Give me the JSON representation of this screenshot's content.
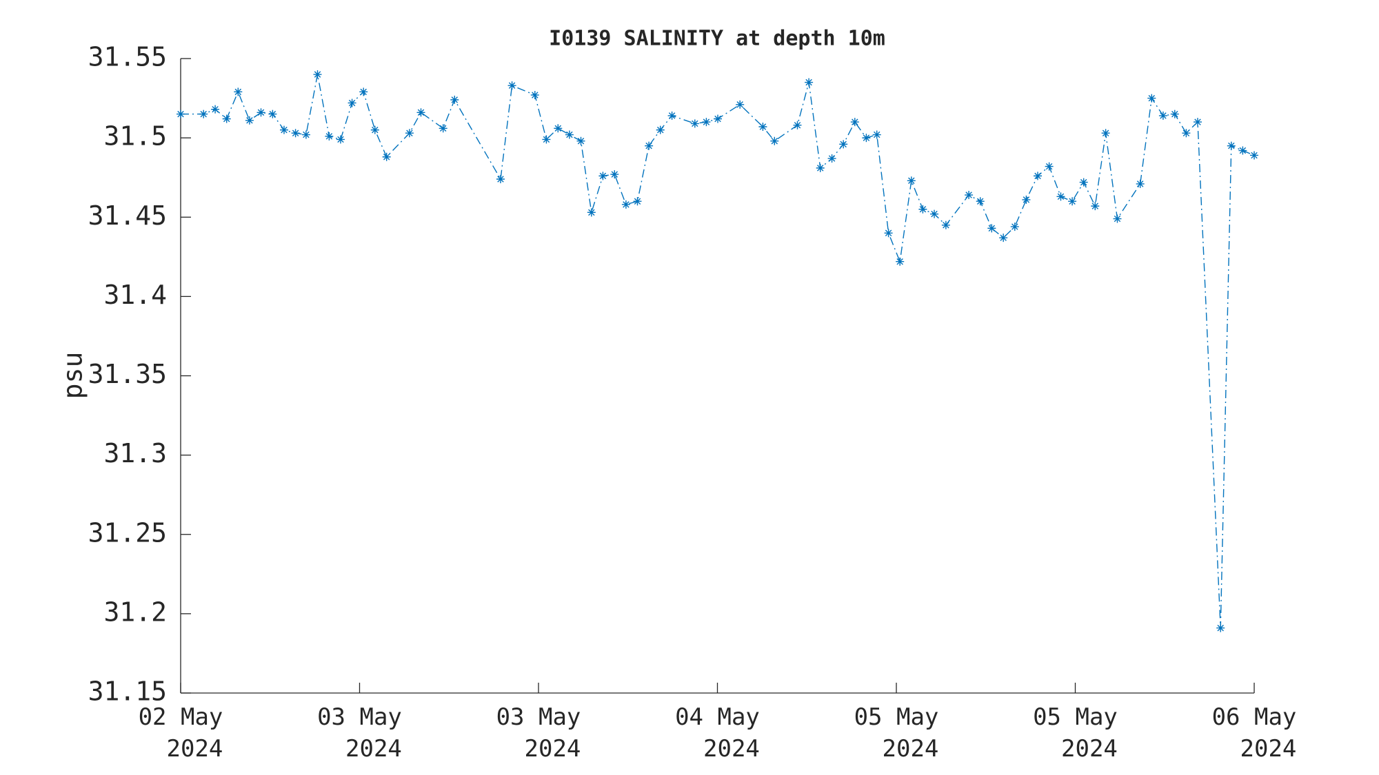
{
  "chart_data": {
    "type": "line",
    "title": "I0139 SALINITY at depth 10m",
    "y_label": "psu",
    "xlim": [
      0,
      6
    ],
    "xticks": [
      {
        "value": 0,
        "label": "02 May\n2024"
      },
      {
        "value": 1,
        "label": "03 May\n2024"
      },
      {
        "value": 2,
        "label": "03 May\n2024"
      },
      {
        "value": 3,
        "label": "04 May\n2024"
      },
      {
        "value": 4,
        "label": "05 May\n2024"
      },
      {
        "value": 5,
        "label": "05 May\n2024"
      },
      {
        "value": 6,
        "label": "06 May\n2024"
      }
    ],
    "ylim": [
      31.15,
      31.55
    ],
    "yticks": [
      31.15,
      31.2,
      31.25,
      31.3,
      31.35,
      31.4,
      31.45,
      31.5,
      31.55
    ],
    "grid": false,
    "series": [
      {
        "color": "#0072bd",
        "x": [
          0,
          0.128,
          0.193,
          0.257,
          0.321,
          0.385,
          0.449,
          0.514,
          0.578,
          0.642,
          0.701,
          0.765,
          0.83,
          0.894,
          0.958,
          1.022,
          1.086,
          1.151,
          1.279,
          1.343,
          1.467,
          1.531,
          1.788,
          1.852,
          1.98,
          2.044,
          2.109,
          2.173,
          2.237,
          2.296,
          2.36,
          2.425,
          2.489,
          2.553,
          2.617,
          2.681,
          2.746,
          2.874,
          2.938,
          3.002,
          3.126,
          3.254,
          3.319,
          3.447,
          3.511,
          3.575,
          3.64,
          3.704,
          3.768,
          3.832,
          3.891,
          3.956,
          4.02,
          4.084,
          4.148,
          4.212,
          4.277,
          4.405,
          4.469,
          4.533,
          4.598,
          4.662,
          4.726,
          4.79,
          4.854,
          4.919,
          4.983,
          5.047,
          5.111,
          5.17,
          5.235,
          5.363,
          5.427,
          5.491,
          5.556,
          5.62,
          5.684,
          5.812,
          5.872,
          5.936,
          6
        ],
        "values": [
          31.515,
          31.515,
          31.518,
          31.512,
          31.529,
          31.511,
          31.516,
          31.515,
          31.505,
          31.503,
          31.502,
          31.54,
          31.501,
          31.499,
          31.522,
          31.529,
          31.505,
          31.488,
          31.503,
          31.516,
          31.506,
          31.524,
          31.474,
          31.533,
          31.527,
          31.499,
          31.506,
          31.502,
          31.498,
          31.453,
          31.476,
          31.477,
          31.458,
          31.46,
          31.495,
          31.505,
          31.514,
          31.509,
          31.51,
          31.512,
          31.521,
          31.507,
          31.498,
          31.508,
          31.535,
          31.481,
          31.487,
          31.496,
          31.51,
          31.5,
          31.502,
          31.44,
          31.422,
          31.473,
          31.455,
          31.452,
          31.445,
          31.464,
          31.46,
          31.443,
          31.437,
          31.444,
          31.461,
          31.476,
          31.482,
          31.463,
          31.46,
          31.472,
          31.457,
          31.503,
          31.449,
          31.471,
          31.525,
          31.514,
          31.515,
          31.503,
          31.51,
          31.191,
          31.495,
          31.492,
          31.489
        ]
      }
    ]
  }
}
